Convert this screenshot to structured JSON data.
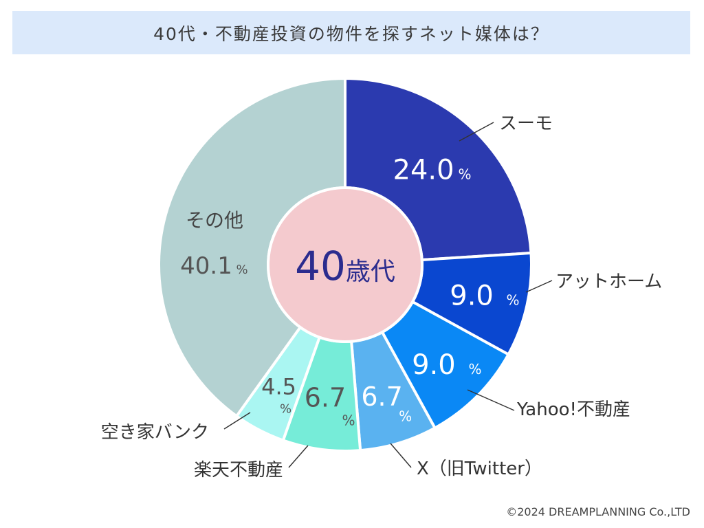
{
  "title": "40代・不動産投資の物件を探すネット媒体は？",
  "center_label": {
    "number": "40",
    "suffix": "歳代"
  },
  "copyright": "©2024 DREAMPLANNING Co.,LTD",
  "percent_sign": "%",
  "colors": {
    "title_bg": "#dbe9fb",
    "center_fill": "#f4cace",
    "center_text": "#2b2c8e",
    "label_text": "#444444",
    "value_white": "#ffffff",
    "value_dark": "#555555"
  },
  "chart_data": {
    "type": "pie",
    "title": "40代・不動産投資の物件を探すネット媒体は？",
    "unit": "%",
    "slices": [
      {
        "label": "スーモ",
        "value": 24.0,
        "display": "24.0",
        "color": "#2b3aaf"
      },
      {
        "label": "アットホーム",
        "value": 9.0,
        "display": "9.0",
        "color": "#0a47d0"
      },
      {
        "label": "Yahoo!不動産",
        "value": 9.0,
        "display": "9.0",
        "color": "#0a88f5"
      },
      {
        "label": "X（旧Twitter）",
        "value": 6.7,
        "display": "6.7",
        "color": "#5ab2f0"
      },
      {
        "label": "楽天不動産",
        "value": 6.7,
        "display": "6.7",
        "color": "#76ecd8"
      },
      {
        "label": "空き家バンク",
        "value": 4.5,
        "display": "4.5",
        "color": "#aaf6f2"
      },
      {
        "label": "その他",
        "value": 40.1,
        "display": "40.1",
        "color": "#b4d2d2"
      }
    ]
  }
}
